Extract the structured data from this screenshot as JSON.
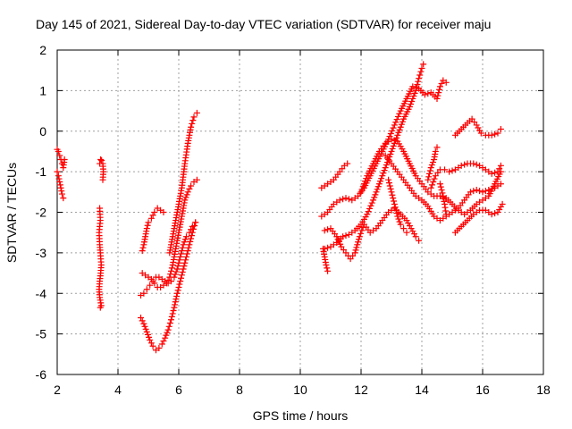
{
  "chart_data": {
    "type": "scatter",
    "title": "Day 145 of 2021, Sidereal Day-to-day VTEC variation (SDTVAR) for receiver maju",
    "xlabel": "GPS time / hours",
    "ylabel": "SDTVAR / TECUs",
    "xlim": [
      2,
      18
    ],
    "ylim": [
      -6,
      2
    ],
    "xticks": [
      "2",
      "4",
      "6",
      "8",
      "10",
      "12",
      "14",
      "16",
      "18"
    ],
    "yticks": [
      "2",
      "1",
      "0",
      "-1",
      "-2",
      "-3",
      "-4",
      "-5",
      "-6"
    ],
    "grid": true,
    "marker": "+",
    "color": "#ff0000",
    "series": [
      {
        "points": [
          [
            2.0,
            -0.45
          ],
          [
            2.04,
            -0.5
          ],
          [
            2.08,
            -0.6
          ],
          [
            2.12,
            -0.7
          ],
          [
            2.16,
            -0.8
          ],
          [
            2.2,
            -0.9
          ],
          [
            2.24,
            -0.7
          ]
        ]
      },
      {
        "points": [
          [
            2.0,
            -1.0
          ],
          [
            2.04,
            -1.1
          ],
          [
            2.08,
            -1.25
          ],
          [
            2.12,
            -1.4
          ],
          [
            2.16,
            -1.55
          ],
          [
            2.2,
            -1.65
          ]
        ]
      },
      {
        "points": [
          [
            3.4,
            -0.8
          ],
          [
            3.43,
            -0.7
          ],
          [
            3.46,
            -0.72
          ],
          [
            3.5,
            -0.8
          ],
          [
            3.52,
            -1.0
          ],
          [
            3.5,
            -1.2
          ]
        ]
      },
      {
        "points": [
          [
            3.4,
            -1.9
          ],
          [
            3.42,
            -2.2
          ],
          [
            3.38,
            -2.5
          ],
          [
            3.4,
            -2.8
          ],
          [
            3.42,
            -3.0
          ],
          [
            3.45,
            -3.3
          ],
          [
            3.43,
            -3.5
          ],
          [
            3.4,
            -3.7
          ],
          [
            3.38,
            -3.9
          ],
          [
            3.4,
            -4.1
          ],
          [
            3.45,
            -4.3
          ],
          [
            3.42,
            -4.35
          ]
        ]
      },
      {
        "points": [
          [
            4.8,
            -2.95
          ],
          [
            4.85,
            -2.8
          ],
          [
            4.9,
            -2.6
          ],
          [
            4.95,
            -2.4
          ],
          [
            5.0,
            -2.25
          ],
          [
            5.1,
            -2.15
          ],
          [
            5.2,
            -2.0
          ],
          [
            5.3,
            -1.9
          ],
          [
            5.4,
            -1.95
          ],
          [
            5.5,
            -2.0
          ]
        ]
      },
      {
        "points": [
          [
            4.75,
            -4.05
          ],
          [
            4.85,
            -4.0
          ],
          [
            4.95,
            -3.9
          ],
          [
            5.05,
            -3.8
          ],
          [
            5.15,
            -3.7
          ],
          [
            5.25,
            -3.6
          ],
          [
            5.35,
            -3.6
          ],
          [
            5.45,
            -3.65
          ],
          [
            5.55,
            -3.7
          ],
          [
            5.65,
            -3.75
          ],
          [
            5.75,
            -3.7
          ],
          [
            5.85,
            -3.6
          ],
          [
            5.95,
            -3.4
          ],
          [
            6.05,
            -3.1
          ],
          [
            6.15,
            -2.8
          ],
          [
            6.25,
            -2.6
          ],
          [
            6.35,
            -2.5
          ],
          [
            6.45,
            -2.35
          ],
          [
            6.55,
            -2.25
          ]
        ]
      },
      {
        "points": [
          [
            4.8,
            -3.5
          ],
          [
            4.9,
            -3.55
          ],
          [
            5.0,
            -3.6
          ],
          [
            5.1,
            -3.65
          ],
          [
            5.2,
            -3.75
          ],
          [
            5.3,
            -3.85
          ],
          [
            5.4,
            -3.85
          ],
          [
            5.5,
            -3.8
          ],
          [
            5.6,
            -3.75
          ],
          [
            5.7,
            -3.6
          ],
          [
            5.8,
            -3.3
          ],
          [
            5.9,
            -2.9
          ],
          [
            6.0,
            -2.5
          ],
          [
            6.1,
            -2.1
          ],
          [
            6.2,
            -1.7
          ],
          [
            6.3,
            -1.5
          ],
          [
            6.4,
            -1.35
          ],
          [
            6.5,
            -1.25
          ],
          [
            6.6,
            -1.2
          ]
        ]
      },
      {
        "points": [
          [
            4.75,
            -4.6
          ],
          [
            4.85,
            -4.75
          ],
          [
            4.95,
            -4.95
          ],
          [
            5.05,
            -5.15
          ],
          [
            5.15,
            -5.3
          ],
          [
            5.25,
            -5.4
          ],
          [
            5.35,
            -5.35
          ],
          [
            5.45,
            -5.25
          ],
          [
            5.55,
            -5.1
          ],
          [
            5.65,
            -4.9
          ],
          [
            5.75,
            -4.65
          ],
          [
            5.85,
            -4.35
          ],
          [
            5.95,
            -4.0
          ],
          [
            6.05,
            -3.7
          ],
          [
            6.15,
            -3.4
          ],
          [
            6.25,
            -3.1
          ],
          [
            6.35,
            -2.8
          ],
          [
            6.45,
            -2.5
          ],
          [
            6.55,
            -2.25
          ]
        ]
      },
      {
        "points": [
          [
            5.7,
            -3.0
          ],
          [
            5.8,
            -2.6
          ],
          [
            5.9,
            -2.2
          ],
          [
            6.0,
            -1.8
          ],
          [
            6.1,
            -1.4
          ],
          [
            6.2,
            -0.8
          ],
          [
            6.3,
            -0.3
          ],
          [
            6.4,
            0.1
          ],
          [
            6.5,
            0.35
          ],
          [
            6.6,
            0.45
          ]
        ]
      },
      {
        "points": [
          [
            10.7,
            -1.4
          ],
          [
            10.9,
            -1.3
          ],
          [
            11.1,
            -1.2
          ],
          [
            11.3,
            -1.0
          ],
          [
            11.45,
            -0.85
          ],
          [
            11.55,
            -0.8
          ]
        ]
      },
      {
        "points": [
          [
            10.7,
            -2.1
          ],
          [
            10.9,
            -2.0
          ],
          [
            11.1,
            -1.8
          ],
          [
            11.3,
            -1.7
          ],
          [
            11.5,
            -1.65
          ],
          [
            11.7,
            -1.7
          ],
          [
            11.9,
            -1.6
          ],
          [
            12.1,
            -1.4
          ],
          [
            12.3,
            -1.1
          ],
          [
            12.5,
            -0.8
          ],
          [
            12.7,
            -0.5
          ],
          [
            12.9,
            -0.2
          ],
          [
            13.1,
            0.15
          ],
          [
            13.3,
            0.5
          ],
          [
            13.5,
            0.8
          ],
          [
            13.7,
            1.1
          ],
          [
            13.9,
            1.05
          ],
          [
            14.1,
            0.9
          ],
          [
            14.3,
            0.95
          ],
          [
            14.5,
            0.8
          ],
          [
            14.6,
            1.1
          ],
          [
            14.7,
            1.25
          ],
          [
            14.8,
            1.2
          ]
        ]
      },
      {
        "points": [
          [
            10.75,
            -2.9
          ],
          [
            10.8,
            -3.1
          ],
          [
            10.85,
            -3.3
          ],
          [
            10.9,
            -3.45
          ]
        ]
      },
      {
        "points": [
          [
            10.8,
            -2.9
          ],
          [
            11.0,
            -2.85
          ],
          [
            11.2,
            -2.75
          ],
          [
            11.4,
            -2.6
          ],
          [
            11.6,
            -2.55
          ],
          [
            11.8,
            -2.45
          ],
          [
            12.0,
            -2.3
          ],
          [
            12.2,
            -2.05
          ],
          [
            12.4,
            -1.7
          ],
          [
            12.6,
            -1.3
          ],
          [
            12.8,
            -0.9
          ],
          [
            13.0,
            -0.5
          ],
          [
            13.2,
            -0.1
          ],
          [
            13.4,
            0.3
          ],
          [
            13.6,
            0.6
          ],
          [
            13.8,
            1.0
          ],
          [
            13.9,
            1.3
          ],
          [
            14.0,
            1.55
          ],
          [
            14.05,
            1.65
          ]
        ]
      },
      {
        "points": [
          [
            10.8,
            -2.45
          ],
          [
            11.0,
            -2.4
          ],
          [
            11.2,
            -2.6
          ],
          [
            11.35,
            -2.85
          ],
          [
            11.5,
            -3.0
          ],
          [
            11.65,
            -3.15
          ],
          [
            11.8,
            -3.0
          ],
          [
            11.95,
            -2.6
          ],
          [
            12.1,
            -2.3
          ],
          [
            12.3,
            -2.5
          ],
          [
            12.5,
            -2.4
          ],
          [
            12.7,
            -2.2
          ],
          [
            12.9,
            -2.0
          ],
          [
            13.1,
            -1.9
          ],
          [
            13.3,
            -2.05
          ],
          [
            13.5,
            -2.2
          ],
          [
            13.65,
            -2.4
          ],
          [
            13.8,
            -2.6
          ],
          [
            13.9,
            -2.7
          ]
        ]
      },
      {
        "points": [
          [
            12.9,
            -1.2
          ],
          [
            13.0,
            -1.5
          ],
          [
            13.1,
            -1.8
          ],
          [
            13.2,
            -2.1
          ],
          [
            13.3,
            -2.3
          ],
          [
            13.4,
            -2.4
          ],
          [
            13.5,
            -2.5
          ]
        ]
      },
      {
        "points": [
          [
            12.0,
            -1.5
          ],
          [
            12.2,
            -1.1
          ],
          [
            12.4,
            -0.8
          ],
          [
            12.6,
            -0.5
          ],
          [
            12.8,
            -0.3
          ],
          [
            13.0,
            -0.2
          ],
          [
            13.2,
            -0.25
          ],
          [
            13.4,
            -0.5
          ],
          [
            13.6,
            -0.8
          ],
          [
            13.8,
            -1.1
          ],
          [
            14.0,
            -1.3
          ],
          [
            14.2,
            -1.5
          ],
          [
            14.4,
            -1.6
          ],
          [
            14.6,
            -1.6
          ],
          [
            14.8,
            -1.65
          ],
          [
            15.0,
            -1.8
          ],
          [
            15.2,
            -1.95
          ],
          [
            15.4,
            -2.05
          ],
          [
            15.6,
            -1.95
          ],
          [
            15.8,
            -1.8
          ],
          [
            16.0,
            -1.7
          ],
          [
            16.2,
            -1.6
          ],
          [
            16.4,
            -1.3
          ],
          [
            16.6,
            -1.0
          ]
        ]
      },
      {
        "points": [
          [
            12.8,
            -0.6
          ],
          [
            13.0,
            -0.8
          ],
          [
            13.2,
            -1.0
          ],
          [
            13.4,
            -1.2
          ],
          [
            13.6,
            -1.4
          ],
          [
            13.8,
            -1.6
          ],
          [
            14.0,
            -1.7
          ],
          [
            14.2,
            -1.85
          ],
          [
            14.4,
            -2.1
          ],
          [
            14.6,
            -2.2
          ],
          [
            14.8,
            -2.1
          ],
          [
            15.0,
            -2.0
          ],
          [
            15.2,
            -1.9
          ],
          [
            15.4,
            -1.7
          ],
          [
            15.6,
            -1.5
          ],
          [
            15.8,
            -1.45
          ],
          [
            16.0,
            -1.5
          ],
          [
            16.2,
            -1.45
          ],
          [
            16.4,
            -1.4
          ],
          [
            16.6,
            -1.3
          ]
        ]
      },
      {
        "points": [
          [
            15.1,
            -2.5
          ],
          [
            15.3,
            -2.35
          ],
          [
            15.5,
            -2.2
          ],
          [
            15.7,
            -2.05
          ],
          [
            15.9,
            -1.95
          ],
          [
            16.1,
            -1.95
          ],
          [
            16.3,
            -2.05
          ],
          [
            16.5,
            -2.0
          ],
          [
            16.65,
            -1.8
          ]
        ]
      },
      {
        "points": [
          [
            14.3,
            -1.4
          ],
          [
            14.45,
            -1.1
          ],
          [
            14.6,
            -0.95
          ],
          [
            14.75,
            -0.95
          ],
          [
            14.9,
            -1.0
          ],
          [
            15.1,
            -0.95
          ],
          [
            15.3,
            -0.85
          ],
          [
            15.5,
            -0.8
          ],
          [
            15.7,
            -0.8
          ],
          [
            15.9,
            -0.85
          ],
          [
            16.1,
            -0.95
          ],
          [
            16.3,
            -1.05
          ],
          [
            16.5,
            -1.0
          ],
          [
            16.6,
            -0.85
          ]
        ]
      },
      {
        "points": [
          [
            15.1,
            -0.1
          ],
          [
            15.3,
            0.05
          ],
          [
            15.5,
            0.2
          ],
          [
            15.65,
            0.3
          ],
          [
            15.8,
            0.15
          ],
          [
            15.95,
            -0.05
          ],
          [
            16.1,
            -0.1
          ],
          [
            16.3,
            -0.1
          ],
          [
            16.5,
            -0.05
          ],
          [
            16.6,
            0.05
          ]
        ]
      },
      {
        "points": [
          [
            14.2,
            -1.2
          ],
          [
            14.3,
            -0.9
          ],
          [
            14.4,
            -0.7
          ],
          [
            14.45,
            -0.5
          ],
          [
            14.5,
            -0.4
          ]
        ]
      },
      {
        "points": [
          [
            14.6,
            -1.3
          ],
          [
            14.7,
            -1.6
          ],
          [
            14.75,
            -1.8
          ],
          [
            14.8,
            -2.05
          ]
        ]
      }
    ]
  }
}
